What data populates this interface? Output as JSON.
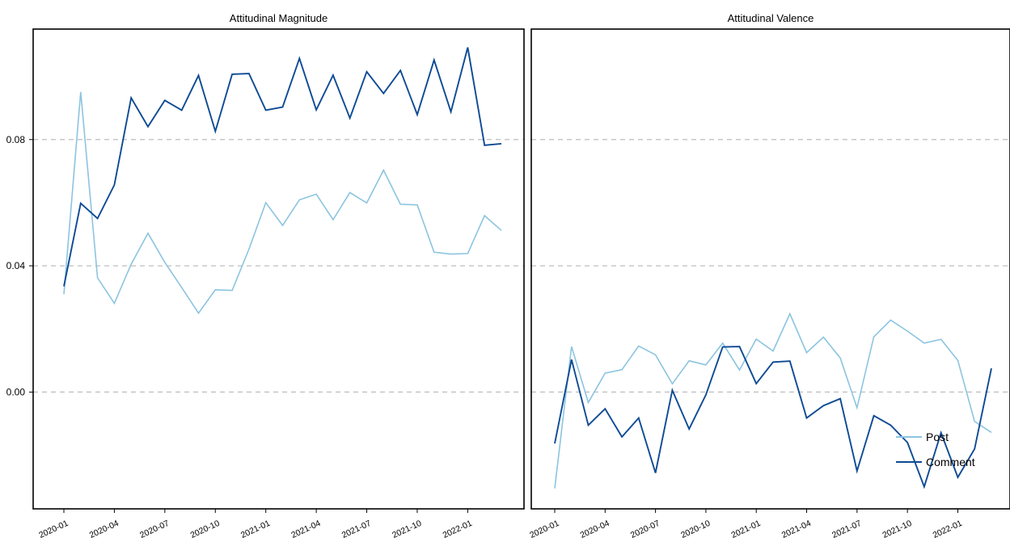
{
  "colors": {
    "post": "#8cc4e0",
    "comment": "#0d4a94",
    "grid": "#bdbdbd",
    "frame": "#000000"
  },
  "chart_data": {
    "type": "line",
    "grid": true,
    "legend_placement": "bottom-right of right panel",
    "x": [
      "2020-01",
      "2020-02",
      "2020-03",
      "2020-04",
      "2020-05",
      "2020-06",
      "2020-07",
      "2020-08",
      "2020-09",
      "2020-10",
      "2020-11",
      "2020-12",
      "2021-01",
      "2021-02",
      "2021-03",
      "2021-04",
      "2021-05",
      "2021-06",
      "2021-07",
      "2021-08",
      "2021-09",
      "2021-10",
      "2021-11",
      "2021-12",
      "2022-01",
      "2022-02",
      "2022-03"
    ],
    "x_tick_labels": [
      "2020-01",
      "2020-04",
      "2020-07",
      "2020-10",
      "2021-01",
      "2021-04",
      "2021-07",
      "2021-10",
      "2022-01"
    ],
    "y_tick_labels": [
      "0.00",
      "0.04",
      "0.08"
    ],
    "ylim": [
      -0.037,
      0.115
    ],
    "legend": [
      "Post",
      "Comment"
    ],
    "panels": [
      {
        "title": "Attitudinal Magnitude",
        "series": [
          {
            "name": "Post",
            "values": [
              0.031,
              0.0951,
              0.0362,
              0.0281,
              0.0405,
              0.0503,
              0.0411,
              0.0331,
              0.025,
              0.0324,
              0.0322,
              0.0453,
              0.06,
              0.0528,
              0.0609,
              0.0627,
              0.0546,
              0.0632,
              0.0599,
              0.0703,
              0.0595,
              0.0593,
              0.0443,
              0.0437,
              0.0439,
              0.0559,
              0.0512
            ]
          },
          {
            "name": "Comment",
            "values": [
              0.0335,
              0.0598,
              0.055,
              0.0656,
              0.0932,
              0.0841,
              0.0924,
              0.0893,
              0.1003,
              0.0826,
              0.1007,
              0.1009,
              0.0893,
              0.0903,
              0.1057,
              0.0894,
              0.1004,
              0.0868,
              0.1015,
              0.0946,
              0.1019,
              0.0879,
              0.1052,
              0.0888,
              0.1092,
              0.0782,
              0.0787
            ]
          }
        ]
      },
      {
        "title": "Attitudinal Valence",
        "series": [
          {
            "name": "Post",
            "values": [
              -0.0305,
              0.0144,
              -0.0033,
              0.006,
              0.0071,
              0.0146,
              0.0118,
              0.0026,
              0.0099,
              0.0086,
              0.0155,
              0.007,
              0.0168,
              0.013,
              0.0248,
              0.0125,
              0.0174,
              0.0108,
              -0.005,
              0.0175,
              0.0228,
              0.0193,
              0.0155,
              0.0167,
              0.01,
              -0.0093,
              -0.0128
            ]
          },
          {
            "name": "Comment",
            "values": [
              -0.0163,
              0.0103,
              -0.0105,
              -0.0053,
              -0.0142,
              -0.0082,
              -0.0256,
              0.0006,
              -0.0117,
              -0.0009,
              0.0143,
              0.0144,
              0.0027,
              0.0095,
              0.0098,
              -0.0082,
              -0.0043,
              -0.0021,
              -0.025,
              -0.0075,
              -0.0105,
              -0.016,
              -0.03,
              -0.0129,
              -0.027,
              -0.018,
              0.0075
            ]
          }
        ]
      }
    ]
  }
}
